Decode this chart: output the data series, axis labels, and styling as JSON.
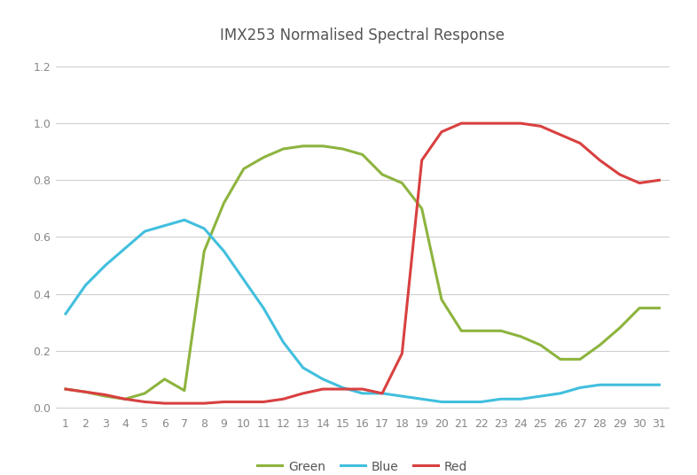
{
  "title": "IMX253 Normalised Spectral Response",
  "x": [
    1,
    2,
    3,
    4,
    5,
    6,
    7,
    8,
    9,
    10,
    11,
    12,
    13,
    14,
    15,
    16,
    17,
    18,
    19,
    20,
    21,
    22,
    23,
    24,
    25,
    26,
    27,
    28,
    29,
    30,
    31
  ],
  "green": [
    0.065,
    0.055,
    0.04,
    0.03,
    0.05,
    0.1,
    0.06,
    0.55,
    0.72,
    0.84,
    0.88,
    0.91,
    0.92,
    0.92,
    0.91,
    0.89,
    0.82,
    0.79,
    0.7,
    0.38,
    0.27,
    0.27,
    0.27,
    0.25,
    0.22,
    0.17,
    0.17,
    0.22,
    0.28,
    0.35,
    0.35
  ],
  "blue": [
    0.33,
    0.43,
    0.5,
    0.56,
    0.62,
    0.64,
    0.66,
    0.63,
    0.55,
    0.45,
    0.35,
    0.23,
    0.14,
    0.1,
    0.07,
    0.05,
    0.05,
    0.04,
    0.03,
    0.02,
    0.02,
    0.02,
    0.03,
    0.03,
    0.04,
    0.05,
    0.07,
    0.08,
    0.08,
    0.08,
    0.08
  ],
  "red": [
    0.065,
    0.055,
    0.045,
    0.03,
    0.02,
    0.015,
    0.015,
    0.015,
    0.02,
    0.02,
    0.02,
    0.03,
    0.05,
    0.065,
    0.065,
    0.065,
    0.05,
    0.19,
    0.87,
    0.97,
    1.0,
    1.0,
    1.0,
    1.0,
    0.99,
    0.96,
    0.93,
    0.87,
    0.82,
    0.79,
    0.8
  ],
  "green_color": "#8DB43E",
  "blue_color": "#41BFDE",
  "red_color": "#D94040",
  "ylim": [
    -0.02,
    1.25
  ],
  "xlim": [
    0.5,
    31.5
  ],
  "yticks": [
    0,
    0.2,
    0.4,
    0.6,
    0.8,
    1.0,
    1.2
  ],
  "xticks": [
    1,
    2,
    3,
    4,
    5,
    6,
    7,
    8,
    9,
    10,
    11,
    12,
    13,
    14,
    15,
    16,
    17,
    18,
    19,
    20,
    21,
    22,
    23,
    24,
    25,
    26,
    27,
    28,
    29,
    30,
    31
  ],
  "background_color": "#ffffff",
  "grid_color": "#d0d0d0",
  "line_width": 2.2,
  "title_fontsize": 12,
  "tick_fontsize": 9,
  "legend_fontsize": 10
}
